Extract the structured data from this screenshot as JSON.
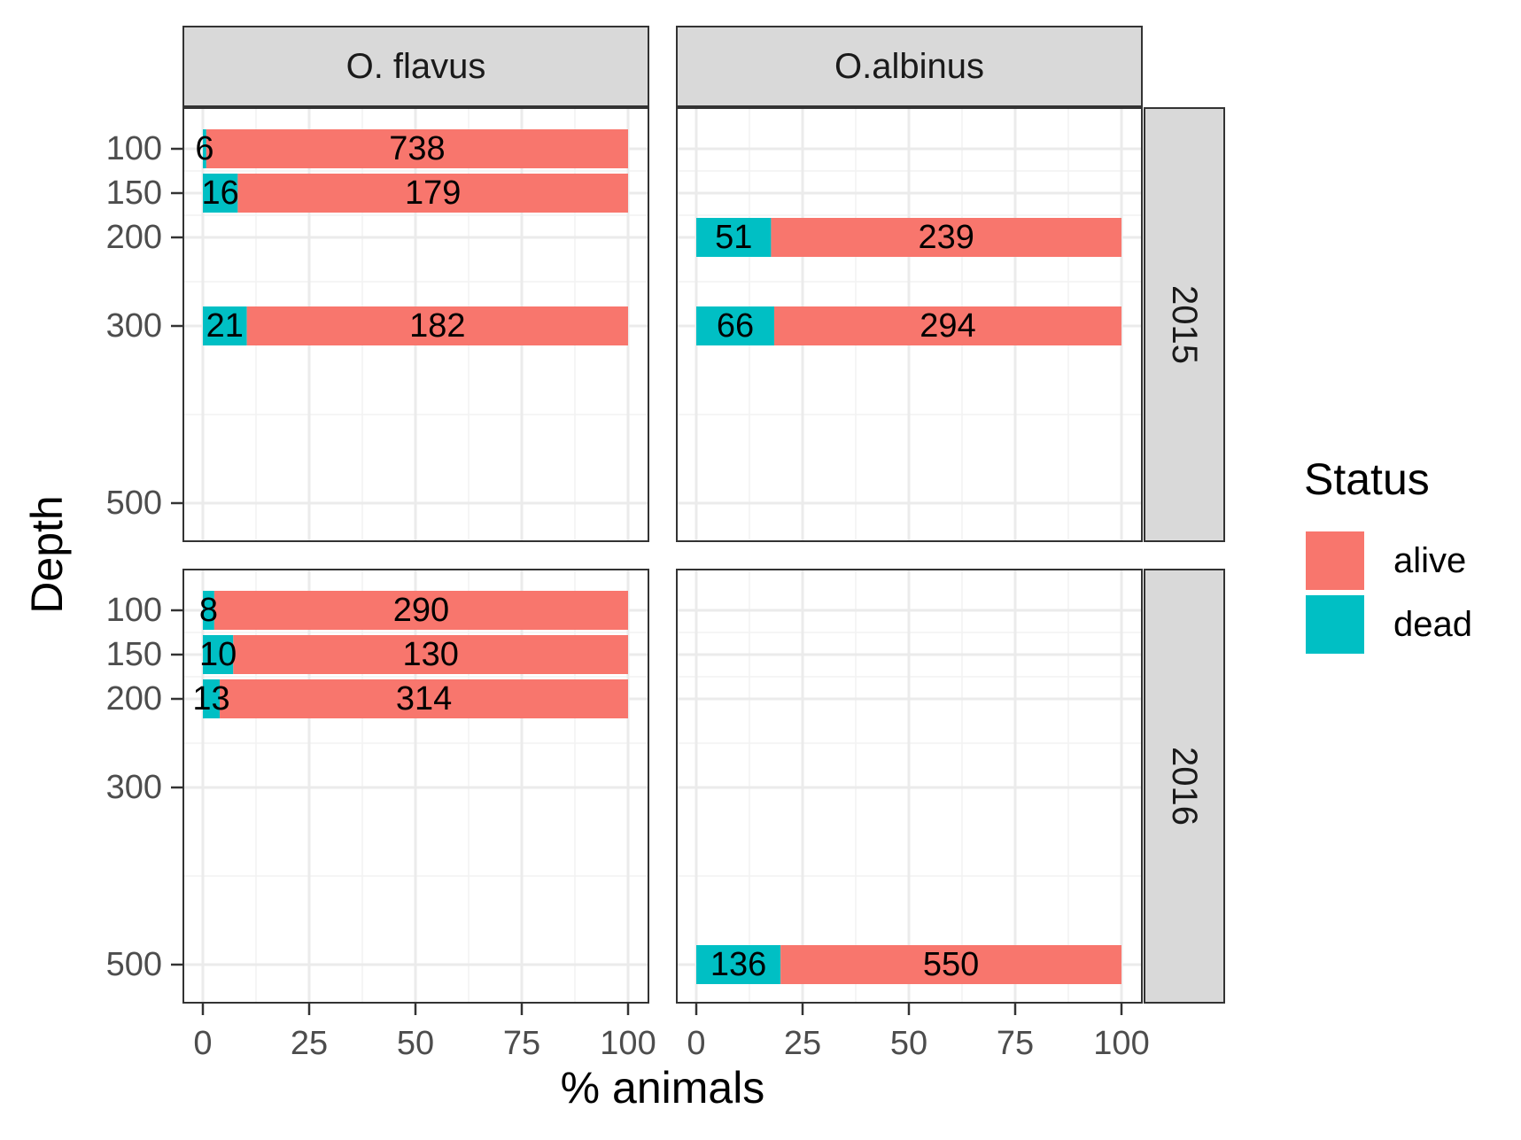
{
  "chart_data": {
    "type": "bar",
    "orientation": "horizontal",
    "stacked": true,
    "xlabel": "% animals",
    "ylabel": "Depth",
    "xlim": [
      0,
      100
    ],
    "x_ticks": [
      0,
      25,
      50,
      75,
      100
    ],
    "y_ticks": [
      100,
      150,
      200,
      300,
      500
    ],
    "grid": true,
    "legend": {
      "title": "Status",
      "position": "right",
      "entries": [
        {
          "label": "alive",
          "color": "#F8766D"
        },
        {
          "label": "dead",
          "color": "#00BFC4"
        }
      ]
    },
    "facet_columns": [
      "O. flavus",
      "O.albinus"
    ],
    "facet_rows": [
      "2015",
      "2016"
    ],
    "panels": [
      {
        "species": "O. flavus",
        "year": "2015",
        "bars": [
          {
            "depth": 100,
            "dead": 6,
            "alive": 738
          },
          {
            "depth": 150,
            "dead": 16,
            "alive": 179
          },
          {
            "depth": 300,
            "dead": 21,
            "alive": 182
          }
        ]
      },
      {
        "species": "O.albinus",
        "year": "2015",
        "bars": [
          {
            "depth": 200,
            "dead": 51,
            "alive": 239
          },
          {
            "depth": 300,
            "dead": 66,
            "alive": 294
          }
        ]
      },
      {
        "species": "O. flavus",
        "year": "2016",
        "bars": [
          {
            "depth": 100,
            "dead": 8,
            "alive": 290
          },
          {
            "depth": 150,
            "dead": 10,
            "alive": 130
          },
          {
            "depth": 200,
            "dead": 13,
            "alive": 314
          }
        ]
      },
      {
        "species": "O.albinus",
        "year": "2016",
        "bars": [
          {
            "depth": 500,
            "dead": 136,
            "alive": 550
          }
        ]
      }
    ]
  }
}
